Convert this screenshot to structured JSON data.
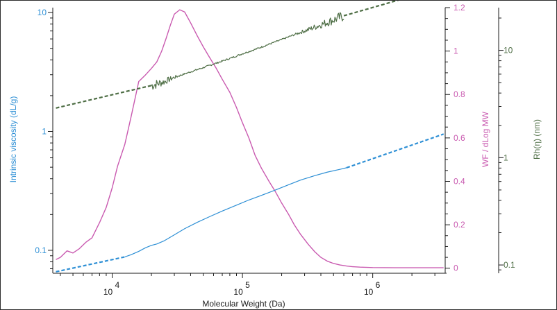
{
  "chart_data": {
    "type": "line",
    "xlabel": "Molecular Weight (Da)",
    "x_scale": "log",
    "x_ticks": [
      {
        "base": "10",
        "exp": "4"
      },
      {
        "base": "10",
        "exp": "5"
      },
      {
        "base": "10",
        "exp": "6"
      }
    ],
    "xlim": [
      3500,
      3600000
    ],
    "axes": {
      "iv": {
        "label": "Intrinsic viscosity (dL/g)",
        "scale": "log",
        "ylim": [
          0.065,
          11
        ],
        "tick_labels": [
          "0.1",
          "1",
          "10"
        ],
        "ticks": [
          0.1,
          1,
          10
        ],
        "color": "#2d8fd5"
      },
      "wf": {
        "label": "WF / dLog MW",
        "scale": "linear",
        "ylim": [
          -0.02,
          1.2
        ],
        "tick_labels": [
          "0",
          "0.2",
          "0.4",
          "0.6",
          "0.8",
          "1",
          "1.2"
        ],
        "ticks": [
          0,
          0.2,
          0.4,
          0.6,
          0.8,
          1,
          1.2
        ],
        "color": "#c95ab0"
      },
      "rh": {
        "label": "Rh(η) (nm)",
        "scale": "log",
        "ylim": [
          0.085,
          25
        ],
        "tick_labels": [
          "0.1",
          "1",
          "10"
        ],
        "ticks": [
          0.1,
          1,
          10
        ],
        "color": "#4e6e45"
      }
    },
    "series": [
      {
        "axis": "wf",
        "color": "#c95ab0",
        "style": "solid",
        "x": [
          3700,
          4000,
          4500,
          5000,
          5600,
          6300,
          7000,
          8000,
          9000,
          10000,
          11000,
          12500,
          14000,
          16000,
          18000,
          20000,
          22000,
          24000,
          26000,
          28000,
          30000,
          33000,
          36000,
          40000,
          45000,
          50000,
          56000,
          63000,
          70000,
          80000,
          90000,
          100000,
          112000,
          125000,
          140000,
          160000,
          180000,
          200000,
          225000,
          250000,
          280000,
          320000,
          360000,
          400000,
          450000,
          500000,
          560000,
          630000,
          700000,
          800000,
          1000000,
          1500000,
          2000000,
          3500000
        ],
        "y": [
          0.04,
          0.05,
          0.08,
          0.07,
          0.09,
          0.12,
          0.14,
          0.21,
          0.28,
          0.37,
          0.47,
          0.57,
          0.7,
          0.86,
          0.89,
          0.92,
          0.95,
          1.0,
          1.06,
          1.12,
          1.17,
          1.19,
          1.18,
          1.13,
          1.07,
          1.02,
          0.97,
          0.92,
          0.87,
          0.81,
          0.74,
          0.67,
          0.6,
          0.52,
          0.46,
          0.4,
          0.35,
          0.3,
          0.25,
          0.2,
          0.155,
          0.11,
          0.075,
          0.05,
          0.032,
          0.022,
          0.015,
          0.01,
          0.007,
          0.005,
          0.003,
          0.002,
          0.002,
          0.002
        ]
      },
      {
        "axis": "iv",
        "color": "#2d8fd5",
        "style": "dashed",
        "x": [
          3700,
          12500
        ],
        "y": [
          0.066,
          0.088
        ]
      },
      {
        "axis": "iv",
        "color": "#2d8fd5",
        "style": "solid",
        "x": [
          12500,
          14000,
          16000,
          18000,
          20000,
          22000,
          25000,
          30000,
          36000,
          45000,
          56000,
          70000,
          90000,
          112000,
          140000,
          180000,
          225000,
          280000,
          360000,
          450000,
          560000,
          630000
        ],
        "y": [
          0.088,
          0.092,
          0.098,
          0.105,
          0.11,
          0.113,
          0.12,
          0.135,
          0.152,
          0.172,
          0.192,
          0.214,
          0.24,
          0.265,
          0.29,
          0.322,
          0.355,
          0.39,
          0.425,
          0.455,
          0.48,
          0.495
        ]
      },
      {
        "axis": "iv",
        "color": "#2d8fd5",
        "style": "dashed",
        "x": [
          630000,
          3500000
        ],
        "y": [
          0.495,
          0.95
        ]
      },
      {
        "axis": "rh",
        "color": "#4e6e45",
        "style": "dashed",
        "x": [
          3700,
          20000
        ],
        "y": [
          2.9,
          4.7
        ]
      },
      {
        "axis": "rh",
        "color": "#4e6e45",
        "style": "solid",
        "noisy": true,
        "x": [
          20000,
          25000,
          30000,
          40000,
          50000,
          63000,
          80000,
          100000,
          125000,
          160000,
          200000,
          250000,
          320000,
          400000,
          500000,
          600000
        ],
        "y": [
          4.7,
          5.1,
          5.6,
          6.3,
          6.9,
          7.6,
          8.4,
          9.3,
          10.2,
          11.4,
          12.6,
          14.0,
          15.6,
          17.3,
          19.2,
          21.0
        ]
      },
      {
        "axis": "rh",
        "color": "#4e6e45",
        "style": "dashed",
        "x": [
          600000,
          2200000
        ],
        "y": [
          21.0,
          33.0
        ]
      }
    ]
  }
}
